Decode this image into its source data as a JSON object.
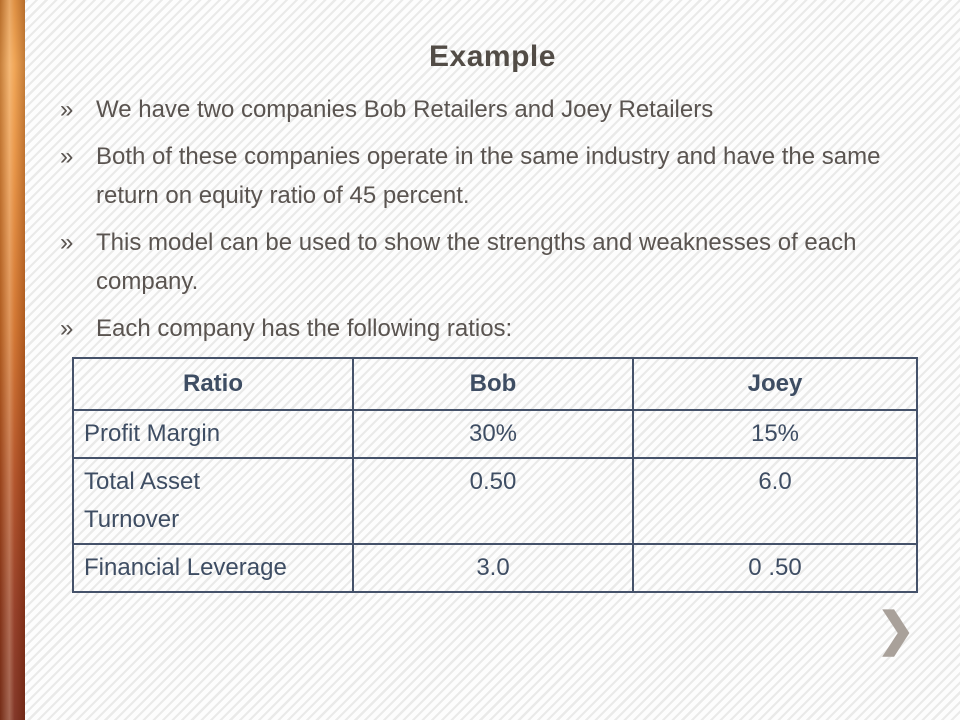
{
  "slide": {
    "title": "Example",
    "bullet_marker": "»",
    "bullets": [
      "We have two companies Bob Retailers and Joey Retailers",
      "Both of these companies operate in the same industry and have the same return on equity ratio of 45 percent.",
      "This model can be used to show the strengths and weaknesses of each company.",
      "Each company has the following ratios:"
    ],
    "chevron": "❯"
  },
  "table": {
    "headers": [
      "Ratio",
      "Bob",
      "Joey"
    ],
    "rows": [
      [
        "Profit Margin",
        "30%",
        "15%"
      ],
      [
        "Total Asset Turnover",
        "0.50",
        "6.0"
      ],
      [
        "Financial Leverage",
        "3.0",
        "0 .50"
      ]
    ]
  },
  "colors": {
    "accent_bar_top": "#E8913F",
    "accent_bar_bottom": "#7C2C1C",
    "title_text": "#524C46",
    "body_text": "#5A5450",
    "table_text": "#3E4D63",
    "table_border": "#45526A",
    "chevron": "#A9A19A",
    "background_stripe": "#EAEAE9"
  }
}
